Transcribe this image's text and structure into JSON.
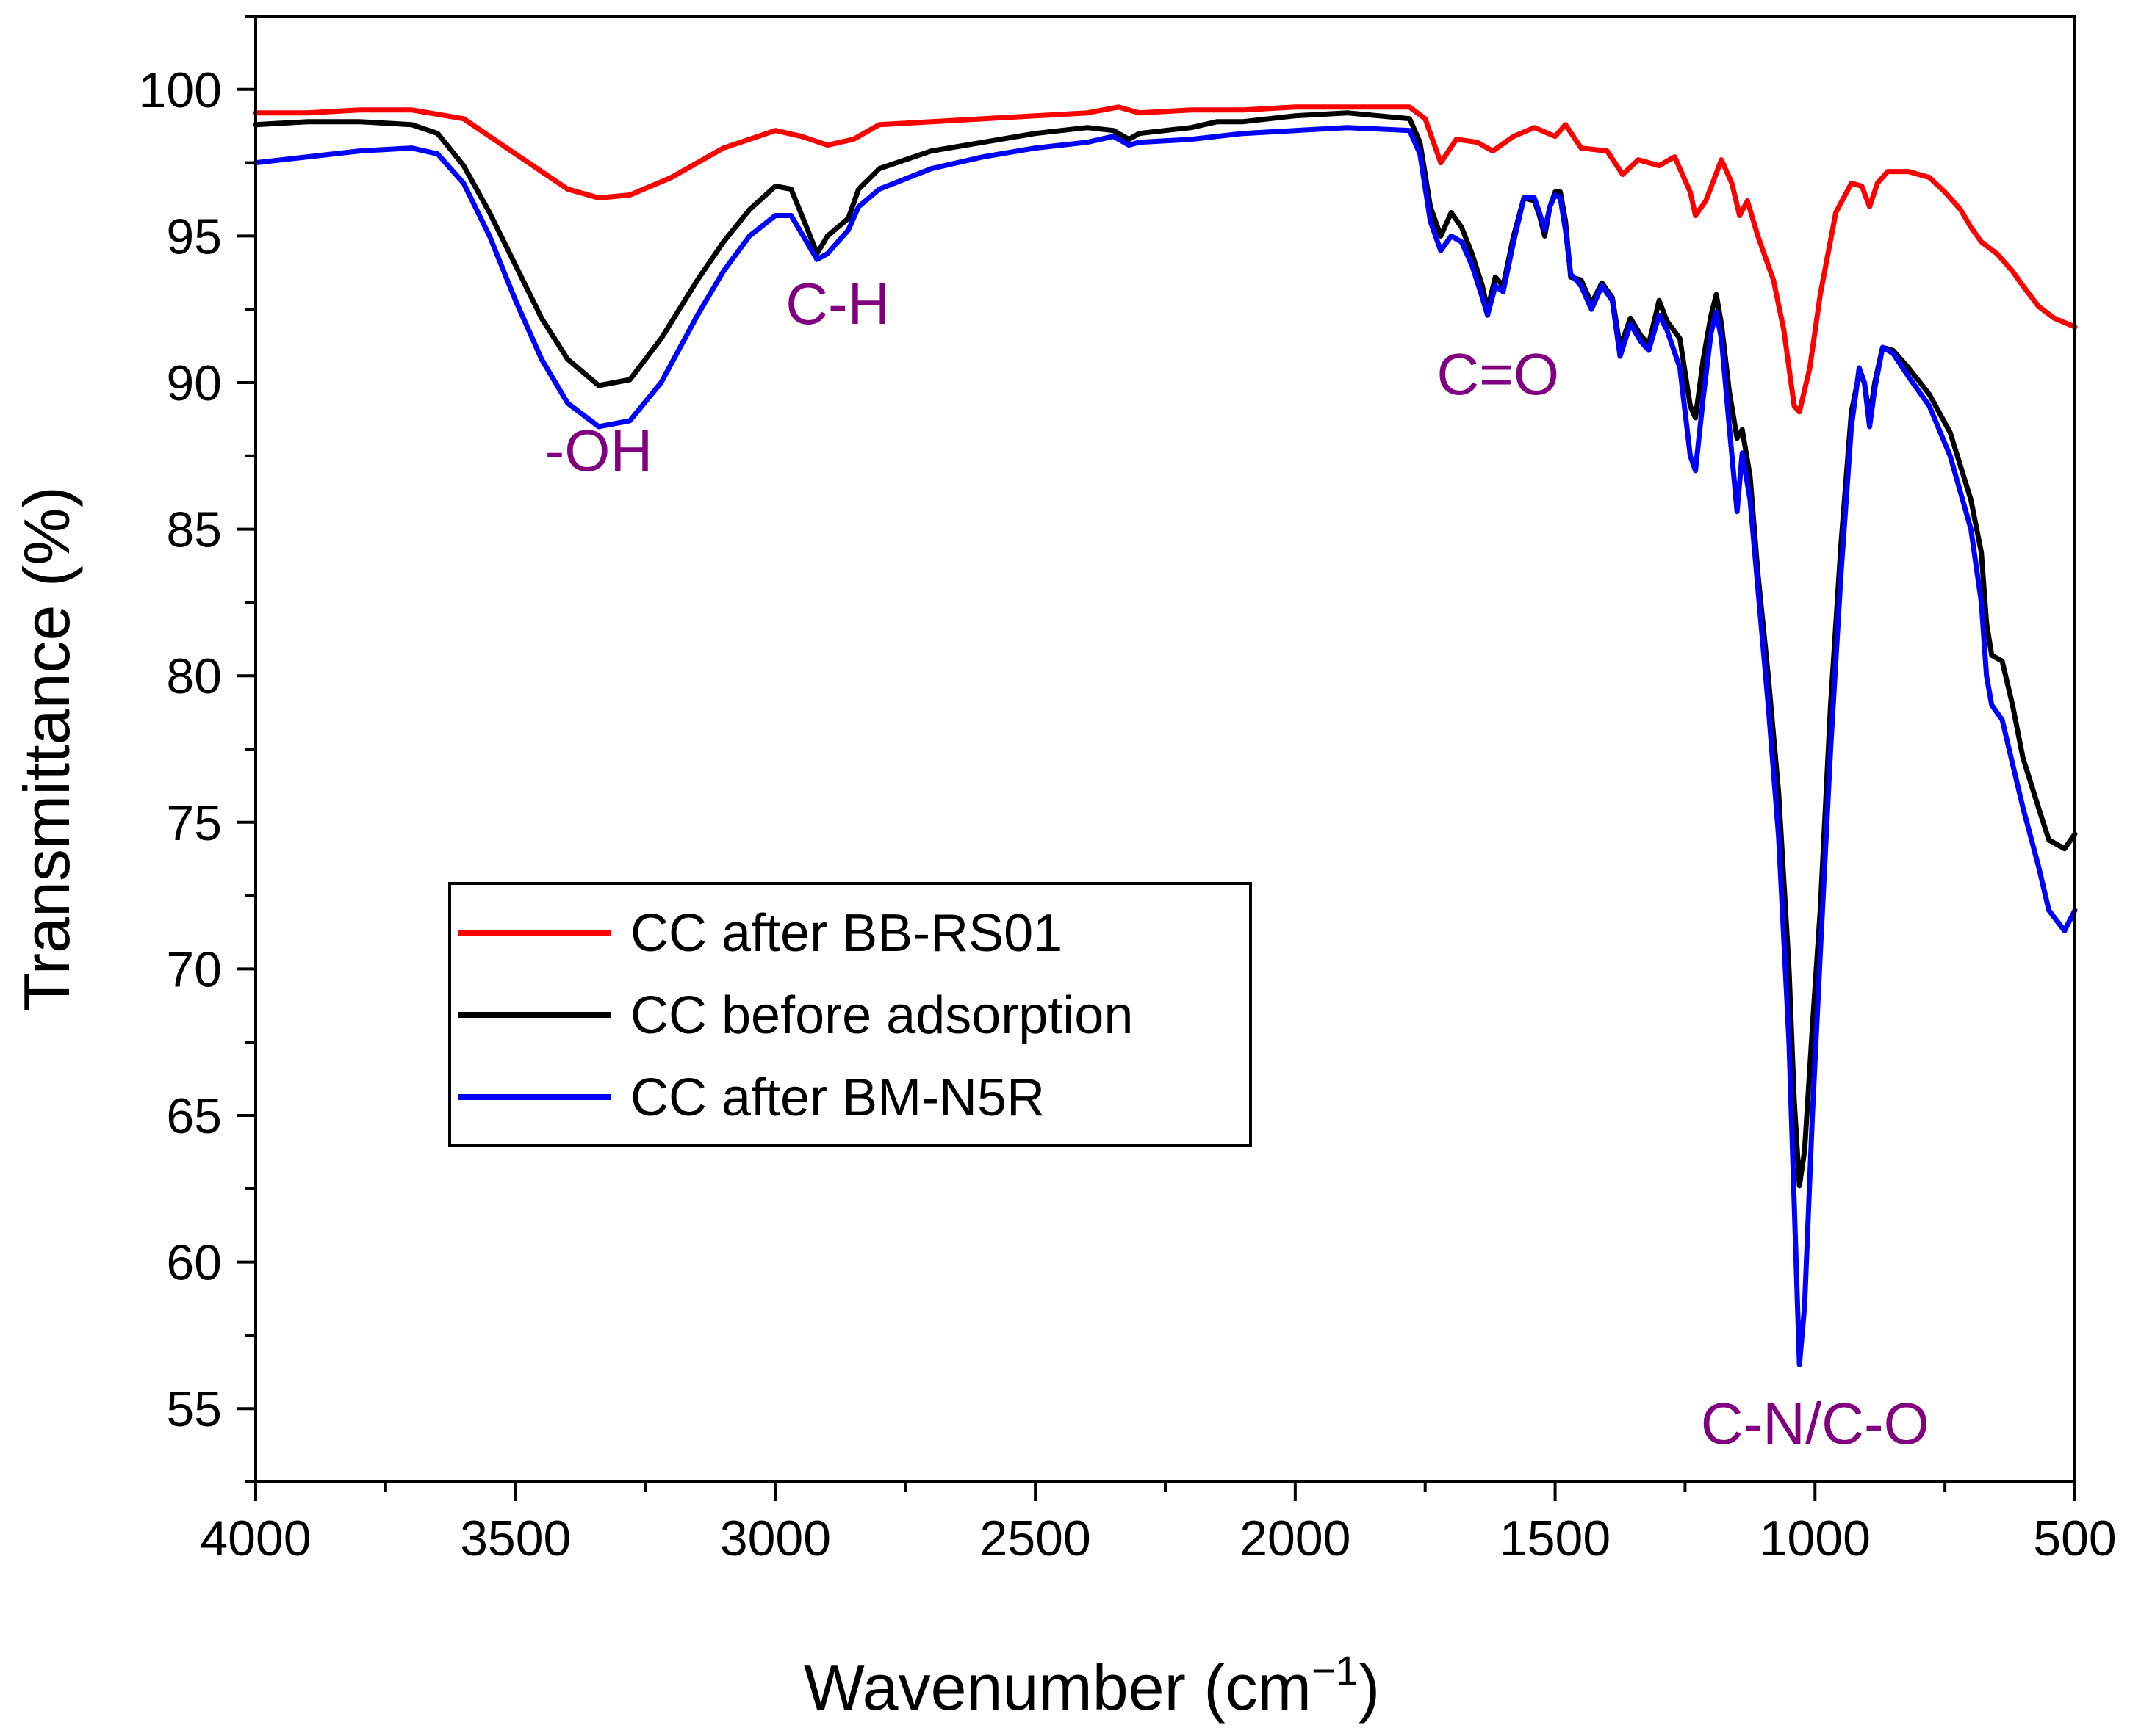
{
  "chart_data": {
    "type": "line",
    "title": "",
    "xlabel": "Wavenumber (cm",
    "xlabel_sup": "−1",
    "xlabel_close": ")",
    "ylabel": "Transmittance (%)",
    "xlim": [
      4000,
      500
    ],
    "ylim": [
      52.5,
      102.5
    ],
    "xticks": [
      4000,
      3500,
      3000,
      2500,
      2000,
      1500,
      1000,
      500
    ],
    "xtick_labels": [
      "4000",
      "3500",
      "3000",
      "2500",
      "2000",
      "1500",
      "1000",
      "500"
    ],
    "yticks": [
      55,
      60,
      65,
      70,
      75,
      80,
      85,
      90,
      95,
      100
    ],
    "ytick_labels": [
      "55",
      "60",
      "65",
      "70",
      "75",
      "80",
      "85",
      "90",
      "95",
      "100"
    ],
    "legend_position": "center-left",
    "annotation_color": "#800080",
    "annotations": [
      {
        "text": "-OH",
        "x": 3340,
        "y": 87.0
      },
      {
        "text": "C-H",
        "x": 2880,
        "y": 92.0
      },
      {
        "text": "C=O",
        "x": 1610,
        "y": 89.6
      },
      {
        "text": "C-N/C-O",
        "x": 1000,
        "y": 53.8
      }
    ],
    "series": [
      {
        "name": "CC after BB-RS01",
        "color": "#ff0000",
        "points": [
          [
            4000,
            99.2
          ],
          [
            3900,
            99.2
          ],
          [
            3800,
            99.3
          ],
          [
            3700,
            99.3
          ],
          [
            3600,
            99.0
          ],
          [
            3500,
            97.8
          ],
          [
            3400,
            96.6
          ],
          [
            3340,
            96.3
          ],
          [
            3280,
            96.4
          ],
          [
            3200,
            97.0
          ],
          [
            3100,
            98.0
          ],
          [
            3000,
            98.6
          ],
          [
            2950,
            98.4
          ],
          [
            2900,
            98.1
          ],
          [
            2850,
            98.3
          ],
          [
            2800,
            98.8
          ],
          [
            2700,
            98.9
          ],
          [
            2600,
            99.0
          ],
          [
            2500,
            99.1
          ],
          [
            2400,
            99.2
          ],
          [
            2340,
            99.4
          ],
          [
            2300,
            99.2
          ],
          [
            2200,
            99.3
          ],
          [
            2100,
            99.3
          ],
          [
            2000,
            99.4
          ],
          [
            1900,
            99.4
          ],
          [
            1780,
            99.4
          ],
          [
            1750,
            99.0
          ],
          [
            1720,
            97.5
          ],
          [
            1690,
            98.3
          ],
          [
            1650,
            98.2
          ],
          [
            1620,
            97.9
          ],
          [
            1580,
            98.4
          ],
          [
            1540,
            98.7
          ],
          [
            1500,
            98.4
          ],
          [
            1480,
            98.8
          ],
          [
            1450,
            98.0
          ],
          [
            1400,
            97.9
          ],
          [
            1370,
            97.1
          ],
          [
            1340,
            97.6
          ],
          [
            1300,
            97.4
          ],
          [
            1270,
            97.7
          ],
          [
            1240,
            96.5
          ],
          [
            1230,
            95.7
          ],
          [
            1210,
            96.2
          ],
          [
            1180,
            97.6
          ],
          [
            1160,
            96.8
          ],
          [
            1145,
            95.7
          ],
          [
            1130,
            96.2
          ],
          [
            1110,
            95.0
          ],
          [
            1080,
            93.5
          ],
          [
            1060,
            91.8
          ],
          [
            1040,
            89.2
          ],
          [
            1030,
            89.0
          ],
          [
            1010,
            90.5
          ],
          [
            990,
            93.0
          ],
          [
            960,
            95.8
          ],
          [
            930,
            96.8
          ],
          [
            910,
            96.7
          ],
          [
            895,
            96.0
          ],
          [
            880,
            96.8
          ],
          [
            860,
            97.2
          ],
          [
            820,
            97.2
          ],
          [
            780,
            97.0
          ],
          [
            750,
            96.5
          ],
          [
            720,
            95.9
          ],
          [
            700,
            95.3
          ],
          [
            680,
            94.8
          ],
          [
            650,
            94.4
          ],
          [
            620,
            93.8
          ],
          [
            600,
            93.3
          ],
          [
            570,
            92.6
          ],
          [
            540,
            92.2
          ],
          [
            500,
            91.9
          ]
        ]
      },
      {
        "name": "CC before adsorption",
        "color": "#000000",
        "points": [
          [
            4000,
            98.8
          ],
          [
            3900,
            98.9
          ],
          [
            3800,
            98.9
          ],
          [
            3700,
            98.8
          ],
          [
            3650,
            98.5
          ],
          [
            3600,
            97.4
          ],
          [
            3550,
            95.8
          ],
          [
            3500,
            94.0
          ],
          [
            3450,
            92.2
          ],
          [
            3400,
            90.8
          ],
          [
            3340,
            89.9
          ],
          [
            3280,
            90.1
          ],
          [
            3220,
            91.5
          ],
          [
            3150,
            93.5
          ],
          [
            3100,
            94.8
          ],
          [
            3050,
            95.9
          ],
          [
            3000,
            96.7
          ],
          [
            2970,
            96.6
          ],
          [
            2940,
            95.3
          ],
          [
            2920,
            94.4
          ],
          [
            2900,
            95.0
          ],
          [
            2860,
            95.6
          ],
          [
            2840,
            96.6
          ],
          [
            2800,
            97.3
          ],
          [
            2700,
            97.9
          ],
          [
            2600,
            98.2
          ],
          [
            2500,
            98.5
          ],
          [
            2400,
            98.7
          ],
          [
            2350,
            98.6
          ],
          [
            2320,
            98.3
          ],
          [
            2300,
            98.5
          ],
          [
            2200,
            98.7
          ],
          [
            2150,
            98.9
          ],
          [
            2100,
            98.9
          ],
          [
            2000,
            99.1
          ],
          [
            1900,
            99.2
          ],
          [
            1780,
            99.0
          ],
          [
            1760,
            98.2
          ],
          [
            1740,
            96.0
          ],
          [
            1720,
            95.0
          ],
          [
            1700,
            95.8
          ],
          [
            1680,
            95.3
          ],
          [
            1660,
            94.4
          ],
          [
            1640,
            93.3
          ],
          [
            1630,
            92.5
          ],
          [
            1615,
            93.6
          ],
          [
            1600,
            93.3
          ],
          [
            1580,
            95.0
          ],
          [
            1560,
            96.3
          ],
          [
            1540,
            96.2
          ],
          [
            1530,
            95.7
          ],
          [
            1520,
            95.0
          ],
          [
            1510,
            96.0
          ],
          [
            1500,
            96.5
          ],
          [
            1490,
            96.5
          ],
          [
            1480,
            95.5
          ],
          [
            1470,
            93.6
          ],
          [
            1450,
            93.5
          ],
          [
            1430,
            92.7
          ],
          [
            1410,
            93.4
          ],
          [
            1390,
            92.9
          ],
          [
            1375,
            91.2
          ],
          [
            1355,
            92.2
          ],
          [
            1335,
            91.6
          ],
          [
            1320,
            91.3
          ],
          [
            1300,
            92.8
          ],
          [
            1285,
            92.1
          ],
          [
            1260,
            91.5
          ],
          [
            1240,
            89.2
          ],
          [
            1230,
            88.8
          ],
          [
            1215,
            90.8
          ],
          [
            1200,
            92.3
          ],
          [
            1190,
            93.0
          ],
          [
            1180,
            92.0
          ],
          [
            1165,
            89.7
          ],
          [
            1150,
            88.1
          ],
          [
            1140,
            88.4
          ],
          [
            1125,
            86.8
          ],
          [
            1110,
            83.5
          ],
          [
            1090,
            80.0
          ],
          [
            1070,
            76.0
          ],
          [
            1050,
            70.0
          ],
          [
            1040,
            65.5
          ],
          [
            1030,
            62.6
          ],
          [
            1020,
            63.8
          ],
          [
            1005,
            68.0
          ],
          [
            990,
            72.0
          ],
          [
            970,
            79.0
          ],
          [
            950,
            84.5
          ],
          [
            930,
            89.0
          ],
          [
            915,
            90.3
          ],
          [
            905,
            90.0
          ],
          [
            895,
            88.8
          ],
          [
            885,
            90.0
          ],
          [
            870,
            91.2
          ],
          [
            850,
            91.1
          ],
          [
            820,
            90.5
          ],
          [
            780,
            89.6
          ],
          [
            740,
            88.3
          ],
          [
            700,
            86.0
          ],
          [
            680,
            84.2
          ],
          [
            670,
            81.8
          ],
          [
            660,
            80.7
          ],
          [
            640,
            80.5
          ],
          [
            620,
            79.0
          ],
          [
            600,
            77.2
          ],
          [
            570,
            75.5
          ],
          [
            550,
            74.4
          ],
          [
            520,
            74.1
          ],
          [
            500,
            74.6
          ]
        ]
      },
      {
        "name": "CC after BM-N5R",
        "color": "#0000ff",
        "points": [
          [
            4000,
            97.5
          ],
          [
            3900,
            97.7
          ],
          [
            3800,
            97.9
          ],
          [
            3700,
            98.0
          ],
          [
            3650,
            97.8
          ],
          [
            3600,
            96.8
          ],
          [
            3550,
            95.0
          ],
          [
            3500,
            92.8
          ],
          [
            3450,
            90.8
          ],
          [
            3400,
            89.3
          ],
          [
            3340,
            88.5
          ],
          [
            3280,
            88.7
          ],
          [
            3220,
            90.0
          ],
          [
            3150,
            92.3
          ],
          [
            3100,
            93.8
          ],
          [
            3050,
            95.0
          ],
          [
            3000,
            95.7
          ],
          [
            2970,
            95.7
          ],
          [
            2940,
            94.8
          ],
          [
            2920,
            94.2
          ],
          [
            2900,
            94.4
          ],
          [
            2860,
            95.2
          ],
          [
            2840,
            96.0
          ],
          [
            2800,
            96.6
          ],
          [
            2700,
            97.3
          ],
          [
            2600,
            97.7
          ],
          [
            2500,
            98.0
          ],
          [
            2400,
            98.2
          ],
          [
            2350,
            98.4
          ],
          [
            2320,
            98.1
          ],
          [
            2300,
            98.2
          ],
          [
            2200,
            98.3
          ],
          [
            2150,
            98.4
          ],
          [
            2100,
            98.5
          ],
          [
            2000,
            98.6
          ],
          [
            1900,
            98.7
          ],
          [
            1780,
            98.6
          ],
          [
            1760,
            97.8
          ],
          [
            1740,
            95.5
          ],
          [
            1720,
            94.5
          ],
          [
            1700,
            95.0
          ],
          [
            1680,
            94.8
          ],
          [
            1660,
            94.0
          ],
          [
            1640,
            92.9
          ],
          [
            1630,
            92.3
          ],
          [
            1615,
            93.3
          ],
          [
            1600,
            93.1
          ],
          [
            1580,
            94.8
          ],
          [
            1560,
            96.3
          ],
          [
            1540,
            96.3
          ],
          [
            1530,
            95.8
          ],
          [
            1520,
            95.2
          ],
          [
            1510,
            96.0
          ],
          [
            1500,
            96.4
          ],
          [
            1490,
            96.3
          ],
          [
            1480,
            95.2
          ],
          [
            1470,
            93.7
          ],
          [
            1450,
            93.3
          ],
          [
            1430,
            92.5
          ],
          [
            1410,
            93.3
          ],
          [
            1390,
            92.8
          ],
          [
            1375,
            90.9
          ],
          [
            1355,
            92.0
          ],
          [
            1335,
            91.4
          ],
          [
            1320,
            91.1
          ],
          [
            1300,
            92.3
          ],
          [
            1285,
            91.8
          ],
          [
            1260,
            90.5
          ],
          [
            1240,
            87.5
          ],
          [
            1230,
            87.0
          ],
          [
            1215,
            89.5
          ],
          [
            1200,
            91.7
          ],
          [
            1190,
            92.4
          ],
          [
            1180,
            91.5
          ],
          [
            1165,
            88.5
          ],
          [
            1150,
            85.6
          ],
          [
            1140,
            87.6
          ],
          [
            1125,
            86.0
          ],
          [
            1110,
            83.0
          ],
          [
            1090,
            79.0
          ],
          [
            1070,
            74.5
          ],
          [
            1050,
            67.5
          ],
          [
            1040,
            62.0
          ],
          [
            1030,
            56.5
          ],
          [
            1020,
            58.5
          ],
          [
            1005,
            65.0
          ],
          [
            990,
            70.5
          ],
          [
            970,
            77.5
          ],
          [
            950,
            83.5
          ],
          [
            930,
            88.5
          ],
          [
            915,
            90.5
          ],
          [
            905,
            90.0
          ],
          [
            895,
            88.5
          ],
          [
            885,
            89.8
          ],
          [
            870,
            91.2
          ],
          [
            850,
            91.0
          ],
          [
            820,
            90.2
          ],
          [
            780,
            89.2
          ],
          [
            740,
            87.5
          ],
          [
            700,
            85.0
          ],
          [
            680,
            82.5
          ],
          [
            670,
            80.0
          ],
          [
            660,
            79.0
          ],
          [
            640,
            78.5
          ],
          [
            620,
            77.0
          ],
          [
            600,
            75.5
          ],
          [
            570,
            73.5
          ],
          [
            550,
            72.0
          ],
          [
            520,
            71.3
          ],
          [
            500,
            72.0
          ]
        ]
      }
    ]
  }
}
